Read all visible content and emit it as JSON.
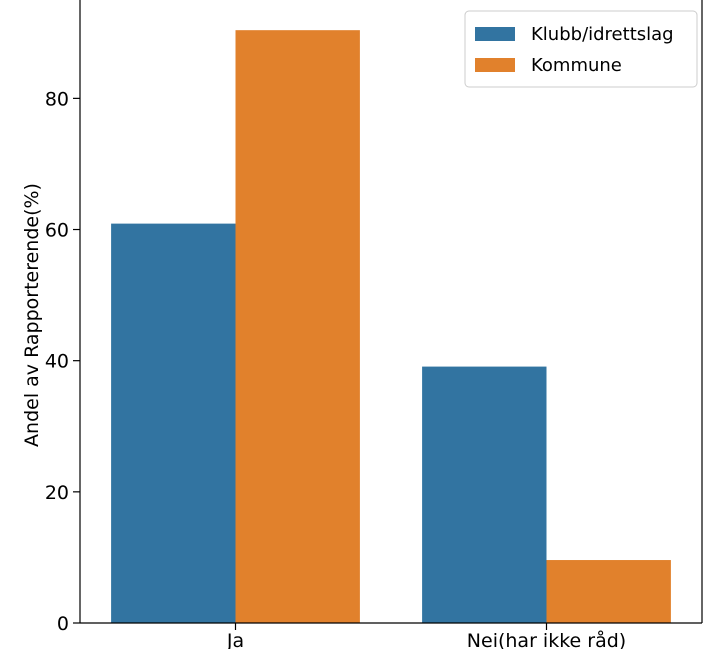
{
  "chart_data": {
    "type": "bar",
    "title": "",
    "xlabel": "",
    "ylabel": "Andel av Rapporterende(%)",
    "categories": [
      "Ja",
      "Nei(har ikke råd)"
    ],
    "series": [
      {
        "name": "Klubb/idrettslag",
        "color": "#3274a1",
        "values": [
          60.9,
          39.1
        ]
      },
      {
        "name": "Kommune",
        "color": "#e1812c",
        "values": [
          90.4,
          9.6
        ]
      }
    ],
    "ylim": [
      0,
      95
    ],
    "yticks": [
      0,
      20,
      40,
      60,
      80
    ],
    "grid": false,
    "legend_position": "top-right"
  }
}
